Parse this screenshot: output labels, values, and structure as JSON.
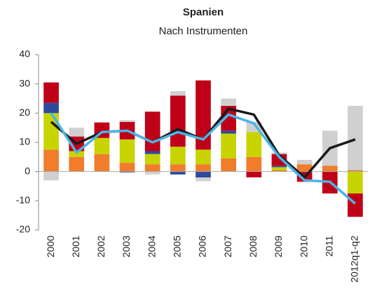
{
  "chart_data": {
    "type": "bar",
    "stacked": true,
    "title": "Spanien",
    "subtitle": "Nach Instrumenten",
    "categories": [
      "2000",
      "2001",
      "2002",
      "2003",
      "2004",
      "2005",
      "2006",
      "2007",
      "2008",
      "2009",
      "2010",
      "2011",
      "2012q1-q2"
    ],
    "ylim": [
      -20,
      40
    ],
    "yticks": [
      -20,
      -10,
      0,
      10,
      20,
      30,
      40
    ],
    "series": [
      {
        "type": "bar",
        "color": "#f07c2c",
        "values": [
          7.5,
          5,
          6,
          3,
          2.5,
          2.5,
          2.5,
          4.5,
          5,
          0.5,
          2.5,
          2,
          0.5
        ]
      },
      {
        "type": "bar",
        "color": "#c8d400",
        "values": [
          12.5,
          2,
          5.5,
          8,
          3.5,
          6,
          5,
          8.5,
          8.5,
          1,
          0,
          0,
          -7.5
        ]
      },
      {
        "type": "bar",
        "color": "#2e4a9e",
        "values": [
          3.5,
          0,
          0,
          -0.3,
          1,
          -1,
          -2,
          1,
          0,
          0.5,
          0,
          0,
          0
        ]
      },
      {
        "type": "bar",
        "color": "#c00018",
        "values": [
          7,
          5,
          5.3,
          6,
          13.5,
          17.5,
          23.7,
          8.5,
          -2,
          4,
          -3.5,
          -7.5,
          -8
        ]
      },
      {
        "type": "bar",
        "color": "#d0d0d0",
        "values": [
          -3,
          3,
          0,
          0.6,
          -1,
          1.5,
          -1.3,
          2.5,
          3.5,
          0.5,
          1.5,
          12,
          22
        ]
      },
      {
        "type": "line",
        "color": "#1a1a1a",
        "values": [
          17,
          9.5,
          13.5,
          14,
          10,
          14.5,
          11,
          21.5,
          19.5,
          5.5,
          -2,
          8,
          11
        ]
      },
      {
        "type": "line",
        "color": "#4ab4e6",
        "values": [
          20,
          6.5,
          13.5,
          14,
          10,
          13.5,
          11,
          19.5,
          16.5,
          5,
          -3,
          -3.5,
          -11
        ]
      }
    ]
  }
}
